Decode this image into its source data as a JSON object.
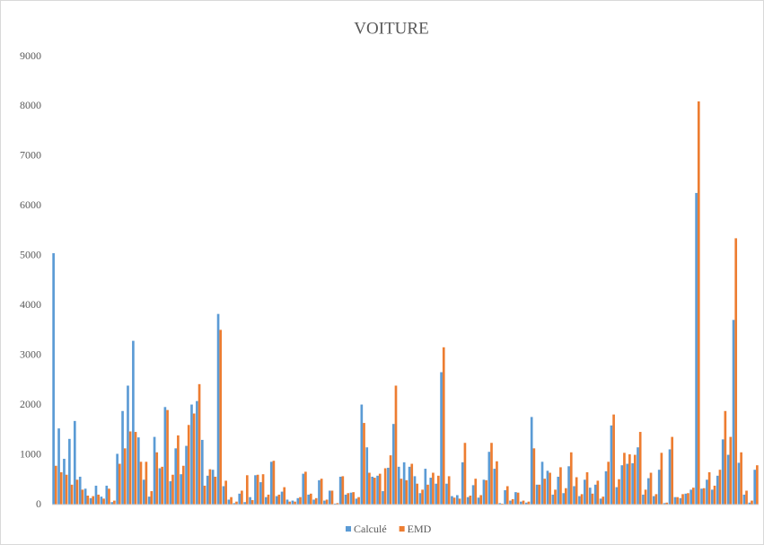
{
  "chart_data": {
    "type": "bar",
    "title": "VOITURE",
    "categories": [
      null,
      null,
      null,
      null,
      null,
      null,
      null,
      null,
      null,
      null,
      null,
      null,
      null,
      null,
      null,
      null,
      null,
      null,
      null,
      null,
      null,
      null,
      null,
      null,
      null,
      null,
      null,
      null,
      null,
      null,
      null,
      null,
      null,
      null,
      null,
      null,
      null,
      null,
      null,
      null,
      null,
      null,
      null,
      null,
      null,
      null,
      null,
      null,
      null,
      null,
      null,
      null,
      null,
      null,
      null,
      null,
      null,
      null,
      null,
      null,
      null,
      null,
      null,
      null,
      null,
      null,
      null,
      null,
      null,
      null,
      null,
      null,
      null,
      null,
      null,
      null,
      null,
      null,
      null,
      null,
      null,
      null,
      null,
      null,
      null,
      null,
      null,
      null,
      null,
      null,
      null,
      null,
      null,
      null,
      null,
      null,
      null,
      null,
      null,
      null,
      null,
      null,
      null,
      null,
      null,
      null,
      null,
      null,
      null,
      null,
      null,
      null,
      null,
      null,
      null,
      null,
      null,
      null,
      null,
      null,
      null,
      null,
      null,
      null,
      null,
      null,
      null,
      null,
      null,
      null,
      null,
      null,
      null
    ],
    "series": [
      {
        "name": "Calculé",
        "color": "#5b9bd5",
        "values": [
          5050,
          1530,
          920,
          1320,
          1680,
          560,
          320,
          130,
          380,
          160,
          380,
          50,
          1020,
          1880,
          2390,
          3290,
          1350,
          500,
          160,
          1360,
          730,
          1960,
          470,
          1130,
          610,
          1180,
          2010,
          2080,
          1300,
          580,
          700,
          3830,
          370,
          100,
          30,
          220,
          50,
          150,
          590,
          450,
          150,
          860,
          170,
          260,
          100,
          80,
          130,
          620,
          200,
          100,
          490,
          80,
          280,
          20,
          560,
          200,
          240,
          120,
          2010,
          1150,
          560,
          580,
          270,
          740,
          1620,
          760,
          850,
          760,
          570,
          230,
          720,
          540,
          420,
          2660,
          420,
          170,
          190,
          850,
          150,
          390,
          140,
          500,
          1060,
          720,
          30,
          290,
          80,
          250,
          60,
          40,
          1760,
          400,
          860,
          680,
          200,
          560,
          230,
          770,
          370,
          170,
          500,
          340,
          400,
          120,
          670,
          1590,
          350,
          790,
          820,
          830,
          1150,
          200,
          530,
          170,
          700,
          30,
          1110,
          150,
          130,
          220,
          300,
          6260,
          320,
          500,
          300,
          580,
          1310,
          1000,
          3710,
          840,
          200,
          40,
          700
        ]
      },
      {
        "name": "EMD",
        "color": "#ed7d31",
        "values": [
          780,
          650,
          600,
          400,
          500,
          300,
          180,
          170,
          200,
          120,
          320,
          80,
          820,
          1130,
          1470,
          1460,
          860,
          860,
          270,
          1050,
          760,
          1900,
          600,
          1390,
          780,
          1600,
          1830,
          2420,
          380,
          710,
          560,
          3510,
          480,
          150,
          60,
          280,
          590,
          90,
          600,
          610,
          200,
          880,
          200,
          350,
          60,
          60,
          150,
          660,
          220,
          130,
          520,
          100,
          280,
          30,
          570,
          230,
          250,
          150,
          1640,
          640,
          540,
          620,
          730,
          990,
          2390,
          520,
          490,
          820,
          420,
          300,
          400,
          640,
          580,
          3160,
          570,
          140,
          120,
          1240,
          180,
          520,
          190,
          490,
          1240,
          870,
          20,
          370,
          110,
          240,
          80,
          60,
          1130,
          400,
          520,
          640,
          300,
          750,
          330,
          1050,
          550,
          210,
          650,
          220,
          480,
          160,
          860,
          1810,
          510,
          1040,
          1010,
          1000,
          1460,
          300,
          640,
          210,
          1040,
          40,
          1360,
          150,
          210,
          230,
          340,
          8100,
          330,
          650,
          380,
          700,
          1880,
          1360,
          5350,
          1050,
          280,
          80,
          790
        ]
      }
    ],
    "ylim": [
      0,
      9000
    ],
    "yticks": [
      0,
      1000,
      2000,
      3000,
      4000,
      5000,
      6000,
      7000,
      8000,
      9000
    ],
    "grid": false,
    "legend": "bottom"
  }
}
